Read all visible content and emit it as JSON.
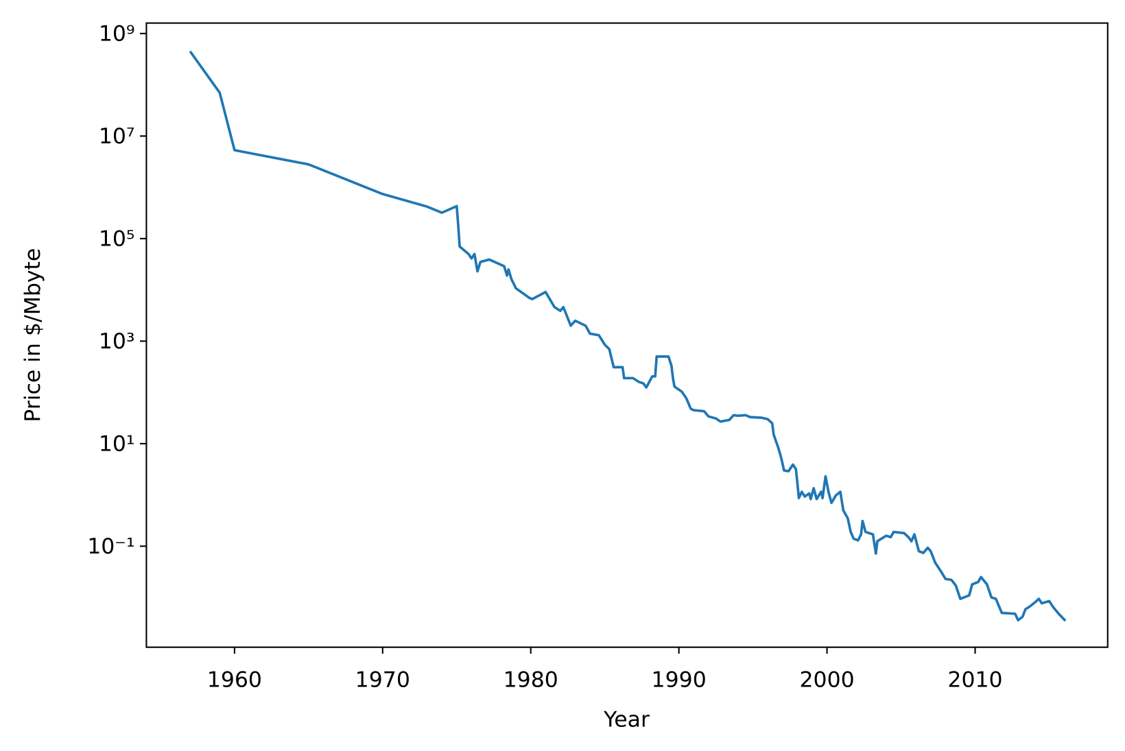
{
  "chart_data": {
    "type": "line",
    "xlabel": "Year",
    "ylabel": "Price in $/Mbyte",
    "x": [
      1957,
      1959,
      1960,
      1965,
      1970,
      1973,
      1974,
      1975,
      1975.1,
      1975.2,
      1975.8,
      1976.0,
      1976.2,
      1976.4,
      1976.6,
      1977.2,
      1978.2,
      1978.4,
      1978.5,
      1978.7,
      1979.0,
      1979.9,
      1980.1,
      1981.0,
      1981.6,
      1982.0,
      1982.2,
      1982.7,
      1983.0,
      1983.7,
      1984.0,
      1984.6,
      1985.0,
      1985.3,
      1985.6,
      1986.2,
      1986.3,
      1986.9,
      1987.3,
      1987.6,
      1987.8,
      1988.0,
      1988.2,
      1988.4,
      1988.5,
      1989.3,
      1989.5,
      1989.6,
      1989.7,
      1990.2,
      1990.5,
      1990.8,
      1991.0,
      1991.7,
      1992.0,
      1992.5,
      1992.8,
      1993.4,
      1993.7,
      1994.0,
      1994.5,
      1994.8,
      1995.6,
      1996.0,
      1996.3,
      1996.4,
      1996.7,
      1996.9,
      1997.1,
      1997.4,
      1997.7,
      1997.9,
      1998.0,
      1998.1,
      1998.3,
      1998.5,
      1998.8,
      1998.9,
      1999.1,
      1999.3,
      1999.6,
      1999.7,
      1999.9,
      2000.1,
      2000.3,
      2000.6,
      2000.9,
      2001.1,
      2001.4,
      2001.6,
      2001.8,
      2002.1,
      2002.3,
      2002.4,
      2002.6,
      2003.1,
      2003.3,
      2003.4,
      2004.0,
      2004.3,
      2004.5,
      2005.2,
      2005.5,
      2005.7,
      2005.9,
      2006.2,
      2006.5,
      2006.8,
      2007.0,
      2007.3,
      2007.7,
      2008.0,
      2008.4,
      2008.7,
      2009.0,
      2009.6,
      2009.8,
      2010.2,
      2010.4,
      2010.8,
      2011.1,
      2011.4,
      2011.8,
      2012.3,
      2012.7,
      2012.9,
      2013.2,
      2013.4,
      2013.7,
      2014.1,
      2014.3,
      2014.5,
      2015.0,
      2015.3,
      2015.7,
      2016.1
    ],
    "series": [
      {
        "color": "#1f77b4",
        "values": [
          450000000,
          70000000,
          5300000,
          2800000,
          740000,
          420000,
          320000,
          430000,
          185000,
          70000,
          50000,
          41000,
          50000,
          23000,
          35000,
          39000,
          29000,
          19000,
          25000,
          16000,
          10700,
          7000,
          6600,
          9100,
          4600,
          3900,
          4600,
          2000,
          2500,
          2000,
          1400,
          1300,
          850,
          700,
          310,
          310,
          190,
          190,
          160,
          150,
          125,
          160,
          205,
          205,
          500,
          500,
          330,
          190,
          130,
          103,
          77,
          48,
          45,
          43,
          34,
          31,
          27,
          29,
          36,
          35,
          36,
          33,
          32,
          30,
          25,
          15,
          8.5,
          5.4,
          3,
          2.9,
          3.9,
          3.2,
          1.7,
          0.87,
          1.15,
          0.93,
          1.07,
          0.83,
          1.35,
          0.83,
          1.15,
          0.87,
          2.3,
          1.15,
          0.7,
          0.98,
          1.15,
          0.5,
          0.35,
          0.19,
          0.14,
          0.13,
          0.17,
          0.31,
          0.19,
          0.17,
          0.072,
          0.125,
          0.16,
          0.15,
          0.19,
          0.18,
          0.15,
          0.125,
          0.17,
          0.08,
          0.074,
          0.093,
          0.08,
          0.048,
          0.032,
          0.023,
          0.022,
          0.017,
          0.0094,
          0.011,
          0.018,
          0.02,
          0.025,
          0.018,
          0.01,
          0.0094,
          0.005,
          0.0049,
          0.0048,
          0.0036,
          0.0042,
          0.0059,
          0.0067,
          0.0083,
          0.0094,
          0.0077,
          0.0085,
          0.0063,
          0.0046,
          0.0035
        ]
      }
    ],
    "xlim": [
      1954.05,
      2018.95
    ],
    "xticks": [
      1960,
      1970,
      1980,
      1990,
      2000,
      2010
    ],
    "ylim": [
      0.00107,
      1600000000
    ],
    "ylog": true,
    "yticks": [
      {
        "value": 0.1,
        "label": "10⁻¹"
      },
      {
        "value": 10,
        "label": "10¹"
      },
      {
        "value": 1000,
        "label": "10³"
      },
      {
        "value": 100000,
        "label": "10⁵"
      },
      {
        "value": 10000000,
        "label": "10⁷"
      },
      {
        "value": 1000000000,
        "label": "10⁹"
      }
    ]
  }
}
